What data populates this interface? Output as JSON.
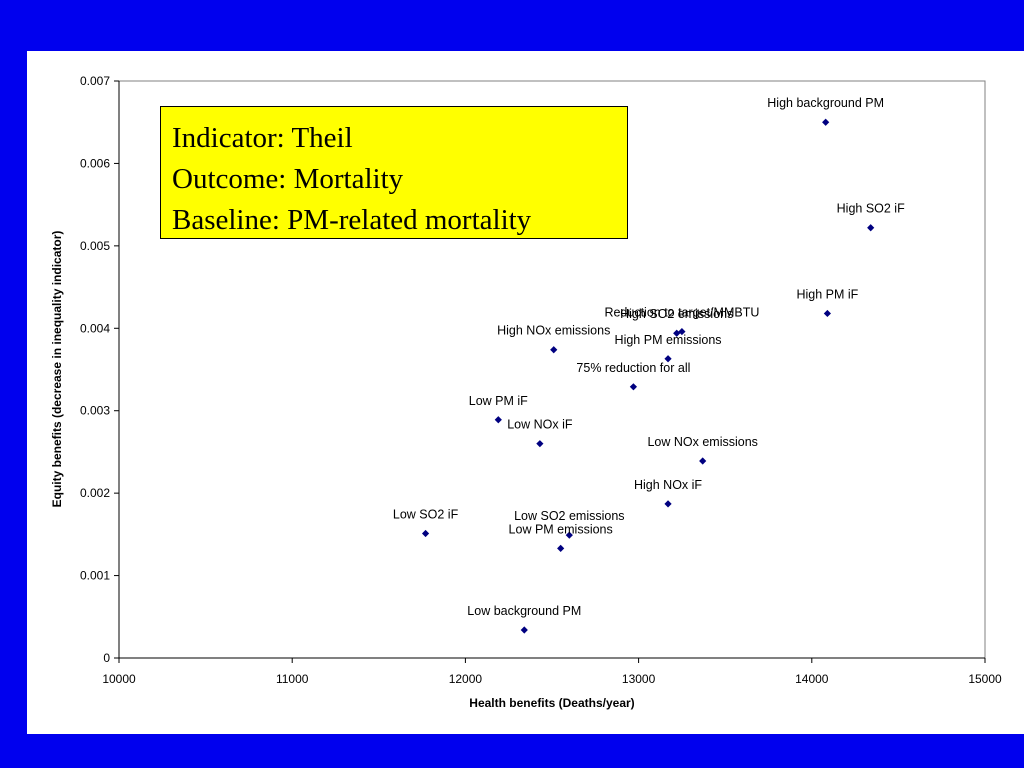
{
  "info_box": {
    "lines": [
      "Indicator: Theil",
      "Outcome: Mortality",
      "Baseline: PM-related mortality"
    ]
  },
  "colors": {
    "background": "#0000ee",
    "marker": "#000080",
    "info_box_fill": "#ffff00"
  },
  "chart_data": {
    "type": "scatter",
    "xlabel": "Health benefits (Deaths/year)",
    "ylabel": "Equity benefits (decrease in inequality indicator)",
    "xlim": [
      10000,
      15000
    ],
    "ylim": [
      0,
      0.007
    ],
    "x_ticks": [
      "10000",
      "11000",
      "12000",
      "13000",
      "14000",
      "15000"
    ],
    "y_ticks": [
      "0",
      "0.001",
      "0.002",
      "0.003",
      "0.004",
      "0.005",
      "0.006",
      "0.007"
    ],
    "grid": false,
    "marker": "diamond",
    "points": [
      {
        "label": "High background PM",
        "x": 14080,
        "y": 0.0065
      },
      {
        "label": "High SO2 iF",
        "x": 14340,
        "y": 0.00522
      },
      {
        "label": "High PM iF",
        "x": 14090,
        "y": 0.00418
      },
      {
        "label": "Reduction to target/MMBTU",
        "x": 13250,
        "y": 0.00396
      },
      {
        "label": "High SO2 emissions",
        "x": 13220,
        "y": 0.00394
      },
      {
        "label": "High NOx emissions",
        "x": 12510,
        "y": 0.00374
      },
      {
        "label": "High PM emissions",
        "x": 13170,
        "y": 0.00363
      },
      {
        "label": "75% reduction for all",
        "x": 12970,
        "y": 0.00329
      },
      {
        "label": "Low PM iF",
        "x": 12190,
        "y": 0.00289
      },
      {
        "label": "Low NOx iF",
        "x": 12430,
        "y": 0.0026
      },
      {
        "label": "Low NOx emissions",
        "x": 13370,
        "y": 0.00239
      },
      {
        "label": "High NOx iF",
        "x": 13170,
        "y": 0.00187
      },
      {
        "label": "Low SO2 iF",
        "x": 11770,
        "y": 0.00151
      },
      {
        "label": "Low SO2 emissions",
        "x": 12600,
        "y": 0.00149
      },
      {
        "label": "Low PM emissions",
        "x": 12550,
        "y": 0.00133
      },
      {
        "label": "Low background PM",
        "x": 12340,
        "y": 0.00034
      }
    ]
  }
}
